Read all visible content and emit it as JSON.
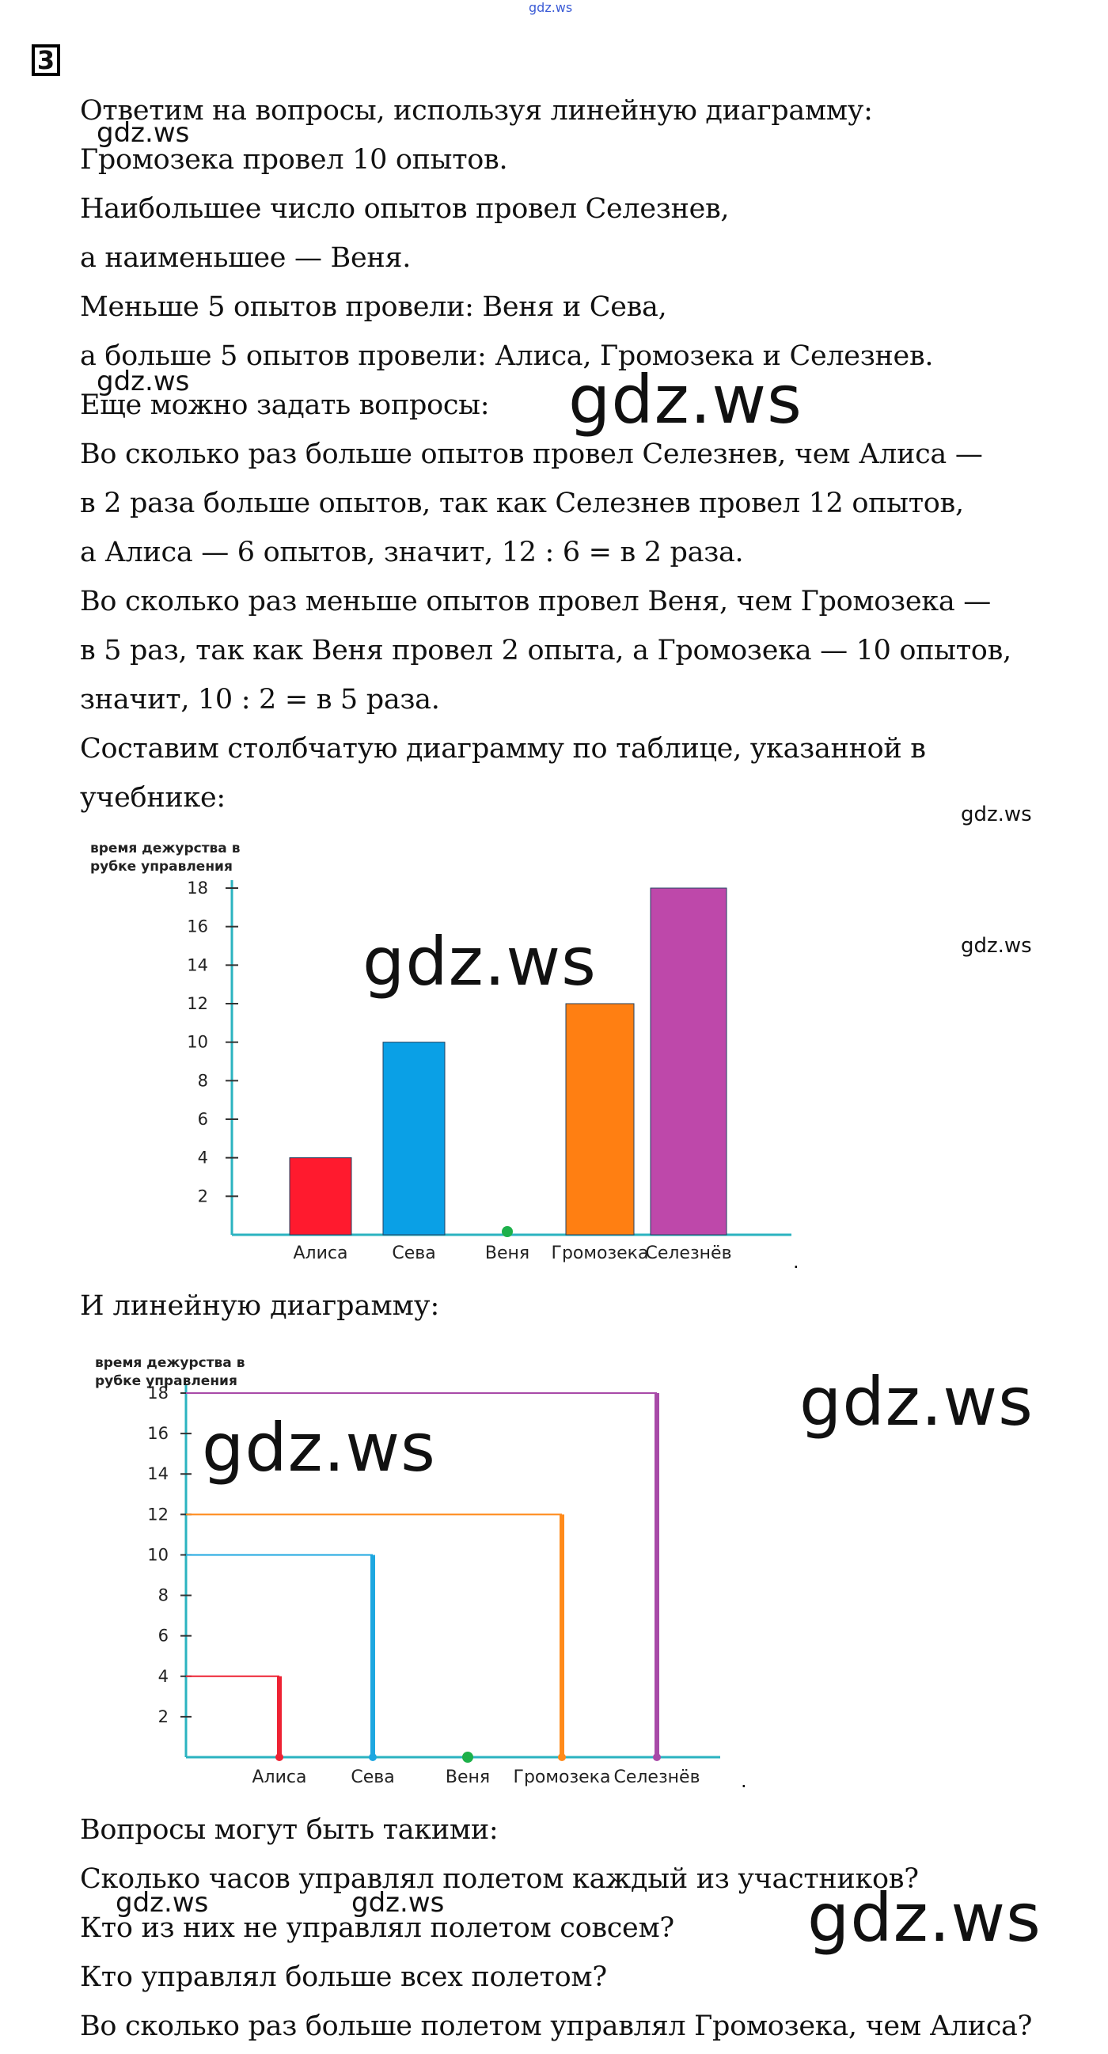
{
  "header": {
    "top_mark": "gdz.ws",
    "task_number": "3"
  },
  "paragraph_1": [
    "Ответим на вопросы, используя линейную диаграмму:",
    "Громозека провел 10 опытов.",
    "Наибольшее число опытов провел Селезнев,",
    "а наименьшее — Веня.",
    "Меньше 5 опытов провели: Веня и Сева,",
    "а больше 5 опытов провели: Алиса, Громозека и Селезнев.",
    "Еще можно задать вопросы:",
    "Во сколько раз больше опытов провел Селезнев, чем Алиса —",
    "в 2 раза больше опытов, так как Селезнев провел 12 опытов,",
    "а Алиса — 6 опытов, значит, 12 : 6 = в 2 раза.",
    "Во сколько раз меньше опытов провел Веня, чем Громозека —",
    "в 5 раз, так как Веня провел 2 опыта, а Громозека — 10 опытов,",
    "значит, 10 : 2 = в 5 раза.",
    "Составим столбчатую диаграмму по таблице, указанной в",
    "учебнике:"
  ],
  "line_chart_intro": "И линейную диаграмму:",
  "paragraph_2": [
    "Вопросы могут быть такими:",
    "Сколько часов управлял полетом каждый из участников?",
    "Кто из них не управлял полетом совсем?",
    "Кто управлял больше всех полетом?",
    "Во сколько раз больше полетом управлял Громозека, чем Алиса?"
  ],
  "watermarks": {
    "small": "gdz.ws",
    "big": "gdz.ws"
  },
  "chart_data": [
    {
      "type": "bar",
      "ylabel": "время дежурства в рубке управления",
      "categories": [
        "Алиса",
        "Сева",
        "Веня",
        "Громозека",
        "Селезнёв"
      ],
      "values": [
        4,
        10,
        0,
        12,
        18
      ],
      "colors": [
        "#ff1a2e",
        "#0aa0e6",
        "#1db04a",
        "#ff7f12",
        "#be48aa"
      ],
      "yticks": [
        2,
        4,
        6,
        8,
        10,
        12,
        14,
        16,
        18
      ],
      "ylim": [
        0,
        18
      ],
      "grid": false
    },
    {
      "type": "line",
      "ylabel": "время дежурства в рубке управления",
      "categories": [
        "Алиса",
        "Сева",
        "Веня",
        "Громозека",
        "Селезнёв"
      ],
      "values": [
        4,
        10,
        0,
        12,
        18
      ],
      "colors": [
        "#ee2233",
        "#1ea7e0",
        "#1db04a",
        "#ff8a1a",
        "#a84aa8"
      ],
      "yticks": [
        2,
        4,
        6,
        8,
        10,
        12,
        14,
        16,
        18
      ],
      "ylim": [
        0,
        18
      ],
      "grid": false
    }
  ]
}
